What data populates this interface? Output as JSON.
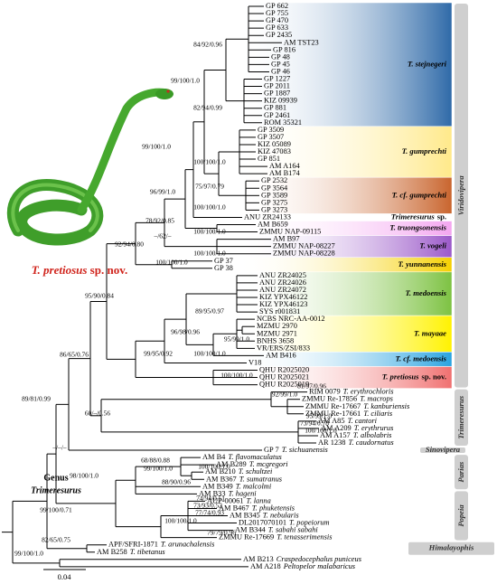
{
  "tips": [
    {
      "id": "GP 662"
    },
    {
      "id": "GP 755"
    },
    {
      "id": "GP 470"
    },
    {
      "id": "GP 633"
    },
    {
      "id": "GP 2435"
    },
    {
      "id": "AM TST23"
    },
    {
      "id": "GP 816"
    },
    {
      "id": "GP 48"
    },
    {
      "id": "GP 45"
    },
    {
      "id": "GP 46"
    },
    {
      "id": "GP 1227"
    },
    {
      "id": "GP 2011"
    },
    {
      "id": "GP 1887"
    },
    {
      "id": "KIZ 09939"
    },
    {
      "id": "GP 881"
    },
    {
      "id": "GP 2461"
    },
    {
      "id": "ROM 35321"
    },
    {
      "id": "GP 3509"
    },
    {
      "id": "GP 3507"
    },
    {
      "id": "KIZ 05089"
    },
    {
      "id": "KIZ 47083"
    },
    {
      "id": "GP 851"
    },
    {
      "id": "AM A164"
    },
    {
      "id": "AM B174"
    },
    {
      "id": "GP 2532"
    },
    {
      "id": "GP 3564"
    },
    {
      "id": "GP 3589"
    },
    {
      "id": "GP 3275"
    },
    {
      "id": "GP 3273"
    },
    {
      "id": "ANU ZR24133"
    },
    {
      "id": "AM B659"
    },
    {
      "id": "ZMMU NAP-09115"
    },
    {
      "id": "AM B97"
    },
    {
      "id": "ZMMU NAP-08227"
    },
    {
      "id": "ZMMU NAP-08228"
    },
    {
      "id": "GP 37"
    },
    {
      "id": "GP 38"
    },
    {
      "id": "ANU ZR24025"
    },
    {
      "id": "ANU ZR24026"
    },
    {
      "id": "ANU ZR24072"
    },
    {
      "id": "KIZ YPX46122"
    },
    {
      "id": "KIZ YPX46123"
    },
    {
      "id": "SYS r001831"
    },
    {
      "id": "NCBS NRC-AA-0012"
    },
    {
      "id": "MZMU 2970"
    },
    {
      "id": "MZMU 2971"
    },
    {
      "id": "BNHS 3658"
    },
    {
      "id": "VR/ERS/ZSI/833"
    },
    {
      "id": "AM B416"
    },
    {
      "id": "V18"
    },
    {
      "id": "QHU R2025020"
    },
    {
      "id": "QHU R2025021"
    },
    {
      "id": "QHU R2025019"
    },
    {
      "id": "RIM 0079",
      "species": "T. erythrochloris"
    },
    {
      "id": "ZMMU Re-17856",
      "species": "T. macrops"
    },
    {
      "id": "ZMMU Re-17667",
      "species": "T. kanburiensis"
    },
    {
      "id": "ZMMU Re-17661",
      "species": "T. ciliaris"
    },
    {
      "id": "AM A85",
      "species": "T. cantori"
    },
    {
      "id": "AM A209",
      "species": "T. erythrurus"
    },
    {
      "id": "AM A157",
      "species": "T. albolabris"
    },
    {
      "id": "AR 1238",
      "species": "T. caudornatus"
    },
    {
      "id": "GP 7",
      "species": "T. sichuanensis"
    },
    {
      "id": "AM B4",
      "species": "T. flavomaculatus"
    },
    {
      "id": "AM B289",
      "species": "T. mcgregori"
    },
    {
      "id": "AM B210",
      "species": "T. schultzei"
    },
    {
      "id": "AM B367",
      "species": "T. sumatranus"
    },
    {
      "id": "AM B349",
      "species": "T. malcolmi"
    },
    {
      "id": "AM B33",
      "species": "T. hageni"
    },
    {
      "id": "AUP-00061",
      "species": "T. lanna"
    },
    {
      "id": "AM B467",
      "species": "T. phuketensis"
    },
    {
      "id": "AM B345",
      "species": "T. nebularis"
    },
    {
      "id": "DL2017070101",
      "species": "T. popeiorum"
    },
    {
      "id": "AM B344",
      "species": "T. sabahi sabahi"
    },
    {
      "id": "ZMMU Re-17669",
      "species": "T. tenasserimensis"
    },
    {
      "id": "APF/SFRI-1871",
      "species": "T. arunachalensis"
    },
    {
      "id": "AM B258",
      "species": "T. tibetanus"
    },
    {
      "id": "AM B213",
      "species": "Craspedocephalus puniceus"
    },
    {
      "id": "AM A218",
      "species": "Peltopelor malabaricus"
    }
  ],
  "support": [
    "84/92/0.96",
    "99/100/1.0",
    "82/94/0.99",
    "99/100/1.0",
    "100/100/1.0",
    "96/99/1.0",
    "75/97/0.79",
    "100/100/1.0",
    "78/92/0.85",
    "–/62/–",
    "92/94/0.80",
    "100/100/1.0",
    "100/100/1.0",
    "100/100/1.0",
    "89/95/0.97",
    "96/98/0.96",
    "95/90/0.84",
    "95/99/1.0",
    "100/100/1.0",
    "99/95/0.92",
    "86/65/0.76",
    "100/100/1.0",
    "81/97/0.96",
    "92/99/1.0",
    "95/99/1.0",
    "73/94/0.78",
    "100/100/1.0",
    "60/–/0.56",
    "89/81/0.99",
    "–/–/–",
    "68/88/0.88",
    "100/100/1.0",
    "99/100/1.0",
    "88/90/0.96",
    "98/100/1.0",
    "74/94/0.51",
    "73/93/0.52",
    "77/74/0.93",
    "100/100/1.0",
    "79/79/0.96",
    "99/100/0.71",
    "82/65/0.75",
    "99/100/1.0"
  ],
  "clades": [
    {
      "name": "T. stejnegeri"
    },
    {
      "name": "T. gumprechti"
    },
    {
      "name": "T. cf. gumprechti"
    },
    {
      "name": "Trimeresurus",
      "suffix": "sp."
    },
    {
      "name": "T. truongsonensis"
    },
    {
      "name": "T. vogeli"
    },
    {
      "name": "T. yunnanensis"
    },
    {
      "name": "T. medoensis"
    },
    {
      "name": "T. mayaae"
    },
    {
      "name": "T. cf. medoensis"
    },
    {
      "name": "T. pretiosus",
      "suffix": "sp. nov."
    }
  ],
  "subgenera": [
    "Viridovipera",
    "Trimeresurus",
    "Sinovipera",
    "Parias",
    "Popeia",
    "Himalayophis"
  ],
  "caption": {
    "name": "T. pretiosus",
    "suffix": "sp. nov."
  },
  "genus": {
    "line1": "Genus",
    "line2": "Trimeresurus"
  },
  "scale": 0.04
}
